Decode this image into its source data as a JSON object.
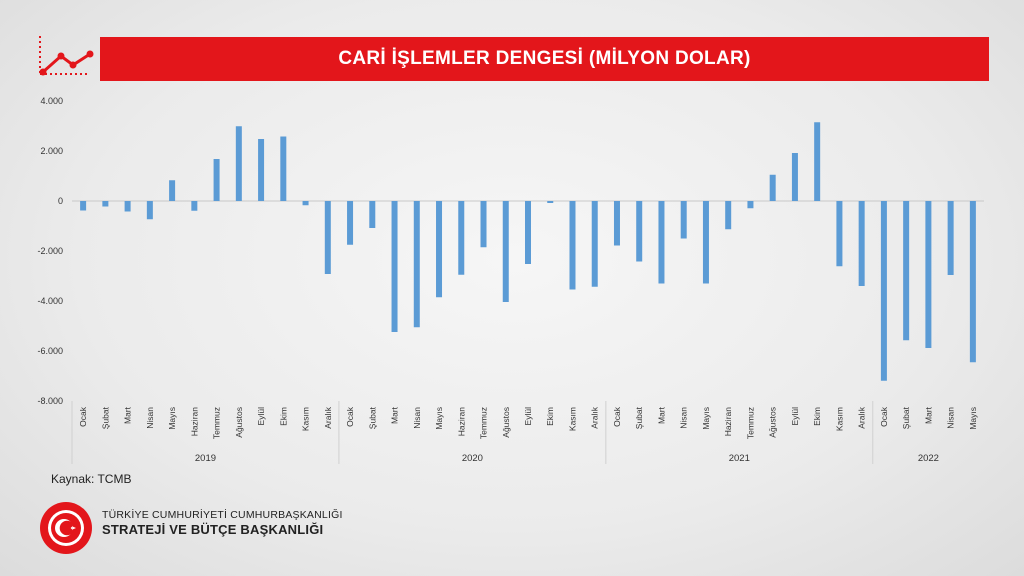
{
  "header": {
    "title": "CARİ İŞLEMLER DENGESİ (MİLYON DOLAR)"
  },
  "icons": {
    "trend": "line-chart-icon",
    "emblem": "presidency-seal-icon"
  },
  "colors": {
    "title_bar": "#e3161b",
    "bar": "#5b9bd5"
  },
  "chart_data": {
    "type": "bar",
    "ylim": [
      -8000,
      4000
    ],
    "yticks": [
      4000,
      2000,
      0,
      -2000,
      -4000,
      -6000,
      -8000
    ],
    "ytick_labels": [
      "4.000",
      "2.000",
      "0",
      "-2.000",
      "-4.000",
      "-6.000",
      "-8.000"
    ],
    "groups": [
      {
        "label": "2019",
        "months": [
          "Ocak",
          "Şubat",
          "Mart",
          "Nisan",
          "Mayıs",
          "Haziran",
          "Temmuz",
          "Ağustos",
          "Eylül",
          "Ekim",
          "Kasım",
          "Aralık"
        ],
        "values": [
          -380,
          -220,
          -420,
          -730,
          830,
          -390,
          1680,
          2990,
          2480,
          2580,
          -170,
          -2920
        ]
      },
      {
        "label": "2020",
        "months": [
          "Ocak",
          "Şubat",
          "Mart",
          "Nisan",
          "Mayıs",
          "Haziran",
          "Temmuz",
          "Ağustos",
          "Eylül",
          "Ekim",
          "Kasım",
          "Aralık"
        ],
        "values": [
          -1750,
          -1080,
          -5240,
          -5050,
          -3850,
          -2950,
          -1850,
          -4040,
          -2520,
          -80,
          -3540,
          -3430
        ]
      },
      {
        "label": "2021",
        "months": [
          "Ocak",
          "Şubat",
          "Mart",
          "Nisan",
          "Mayıs",
          "Haziran",
          "Temmuz",
          "Ağustos",
          "Eylül",
          "Ekim",
          "Kasım",
          "Aralık"
        ],
        "values": [
          -1780,
          -2420,
          -3300,
          -1500,
          -3300,
          -1130,
          -290,
          1050,
          1920,
          3150,
          -2610,
          -3400
        ]
      },
      {
        "label": "2022",
        "months": [
          "Ocak",
          "Şubat",
          "Mart",
          "Nisan",
          "Mayıs"
        ],
        "values": [
          -7190,
          -5570,
          -5880,
          -2960,
          -6450
        ]
      }
    ]
  },
  "footer": {
    "source": "Kaynak: TCMB",
    "org_line1": "TÜRKİYE CUMHURİYETİ CUMHURBAŞKANLIĞI",
    "org_line2": "STRATEJİ VE BÜTÇE BAŞKANLIĞI"
  }
}
